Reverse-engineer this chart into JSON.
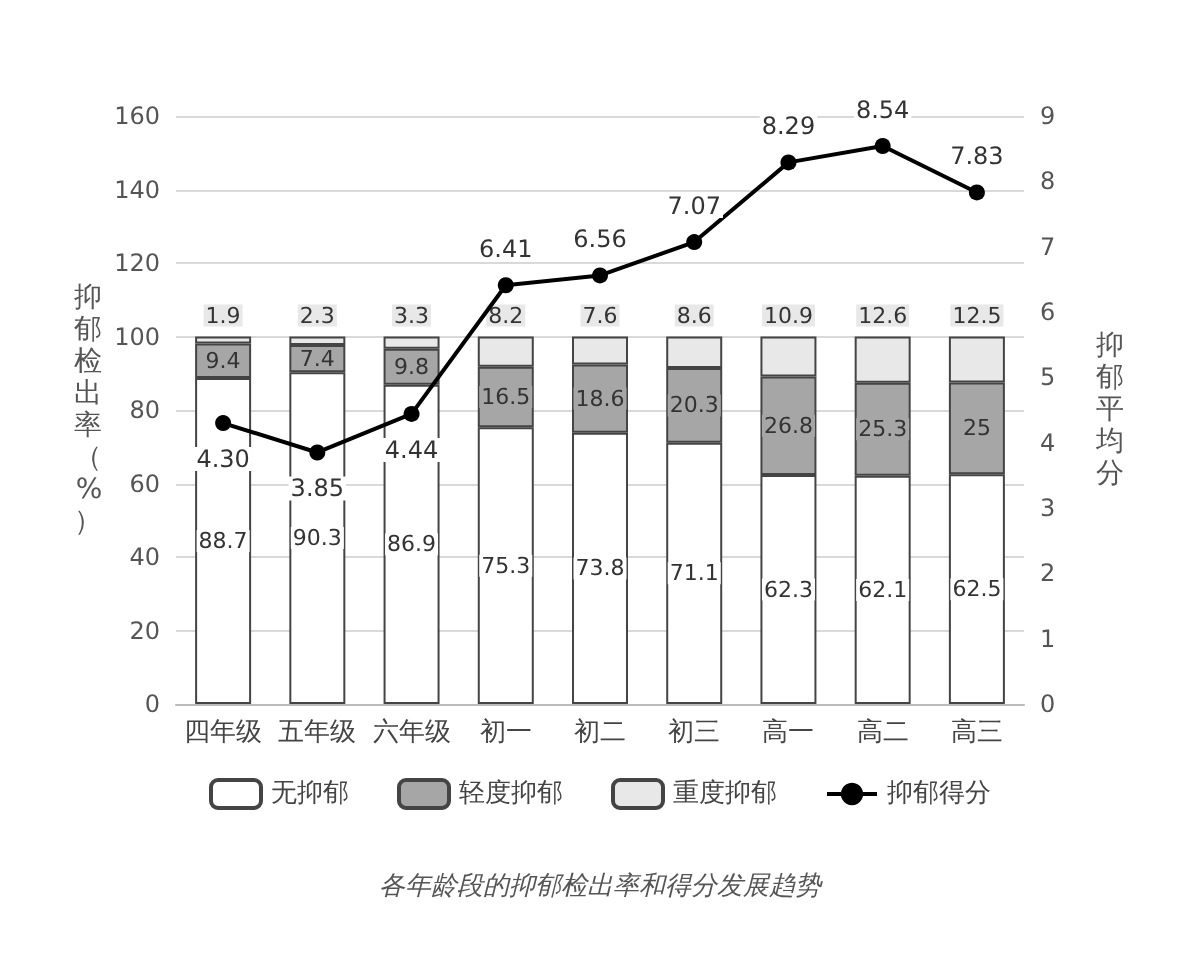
{
  "chart_data": {
    "type": "bar",
    "stacked": true,
    "categories": [
      "四年级",
      "五年级",
      "六年级",
      "初一",
      "初二",
      "初三",
      "高一",
      "高二",
      "高三"
    ],
    "series": [
      {
        "name": "无抑郁",
        "color": "#ffffff",
        "values": [
          88.7,
          90.3,
          86.9,
          75.3,
          73.8,
          71.1,
          62.3,
          62.1,
          62.5
        ],
        "value_labels": [
          "88.7",
          "90.3",
          "86.9",
          "75.3",
          "73.8",
          "71.1",
          "62.3",
          "62.1",
          "62.5"
        ]
      },
      {
        "name": "轻度抑郁",
        "color": "#a6a6a6",
        "values": [
          9.4,
          7.4,
          9.8,
          16.5,
          18.6,
          20.3,
          26.8,
          25.3,
          25
        ],
        "value_labels": [
          "9.4",
          "7.4",
          "9.8",
          "16.5",
          "18.6",
          "20.3",
          "26.8",
          "25.3",
          "25"
        ]
      },
      {
        "name": "重度抑郁",
        "color": "#e8e8e8",
        "values": [
          1.9,
          2.3,
          3.3,
          8.2,
          7.6,
          8.6,
          10.9,
          12.6,
          12.5
        ],
        "value_labels": [
          "1.9",
          "2.3",
          "3.3",
          "8.2",
          "7.6",
          "8.6",
          "10.9",
          "12.6",
          "12.5"
        ]
      },
      {
        "name": "抑郁得分",
        "type": "line",
        "axis": "y2",
        "color": "#000000",
        "marker": "circle",
        "values": [
          4.3,
          3.85,
          4.44,
          6.41,
          6.56,
          7.07,
          8.29,
          8.54,
          7.83
        ],
        "value_labels": [
          "4.30",
          "3.85",
          "4.44",
          "6.41",
          "6.56",
          "7.07",
          "8.29",
          "8.54",
          "7.83"
        ]
      }
    ],
    "ylabel": "抑郁检出率（%）",
    "y2label": "抑郁平均分",
    "ylim": [
      0,
      160
    ],
    "yticks": [
      0,
      20,
      40,
      60,
      80,
      100,
      120,
      140,
      160
    ],
    "y2lim": [
      0,
      9
    ],
    "y2ticks": [
      0,
      1,
      2,
      3,
      4,
      5,
      6,
      7,
      8,
      9
    ],
    "grid": "y",
    "legend": "bottom",
    "annotations": [
      "各年龄段的抑郁检出率和得分发展趋势"
    ]
  }
}
